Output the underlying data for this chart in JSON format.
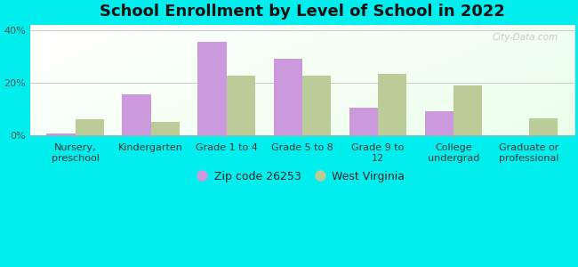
{
  "title": "School Enrollment by Level of School in 2022",
  "categories": [
    "Nursery,\npreschool",
    "Kindergarten",
    "Grade 1 to 4",
    "Grade 5 to 8",
    "Grade 9 to\n12",
    "College\nundergrad",
    "Graduate or\nprofessional"
  ],
  "zip_values": [
    0.5,
    15.5,
    35.5,
    29.0,
    10.5,
    9.0,
    0.0
  ],
  "state_values": [
    6.0,
    5.0,
    22.5,
    22.5,
    23.5,
    19.0,
    6.5
  ],
  "zip_color": "#cc99dd",
  "state_color": "#bbcc99",
  "background_color": "#00eeee",
  "ylim": [
    0,
    42
  ],
  "yticks": [
    0,
    20,
    40
  ],
  "ytick_labels": [
    "0%",
    "20%",
    "40%"
  ],
  "legend_zip_label": "Zip code 26253",
  "legend_state_label": "West Virginia",
  "watermark": "City-Data.com",
  "bar_width": 0.38,
  "title_fontsize": 13,
  "tick_fontsize": 8,
  "legend_fontsize": 9
}
